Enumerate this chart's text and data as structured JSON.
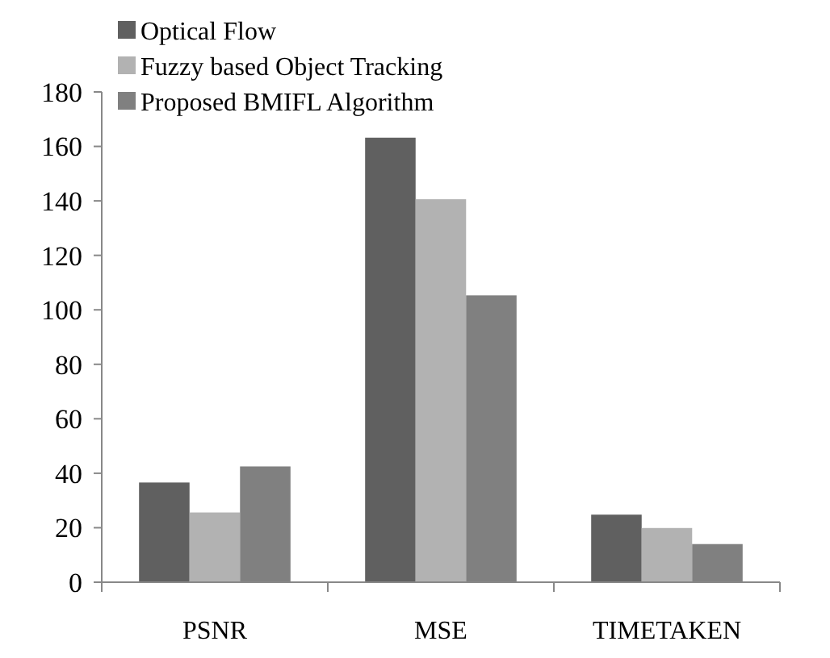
{
  "chart_data": {
    "type": "bar",
    "categories": [
      "PSNR",
      "MSE",
      "TIMETAKEN"
    ],
    "series": [
      {
        "name": "Optical Flow",
        "color": "#606060",
        "values": [
          36.6,
          163.2,
          24.8
        ]
      },
      {
        "name": "Fuzzy based Object Tracking",
        "color": "#b2b2b2",
        "values": [
          25.6,
          140.6,
          19.9
        ]
      },
      {
        "name": "Proposed BMIFL Algorithm",
        "color": "#808080",
        "values": [
          42.5,
          105.3,
          14.0
        ]
      }
    ],
    "ylim": [
      0,
      180
    ],
    "yticks": [
      0,
      20,
      40,
      60,
      80,
      100,
      120,
      140,
      160,
      180
    ],
    "grid": false,
    "legend": "top left"
  }
}
